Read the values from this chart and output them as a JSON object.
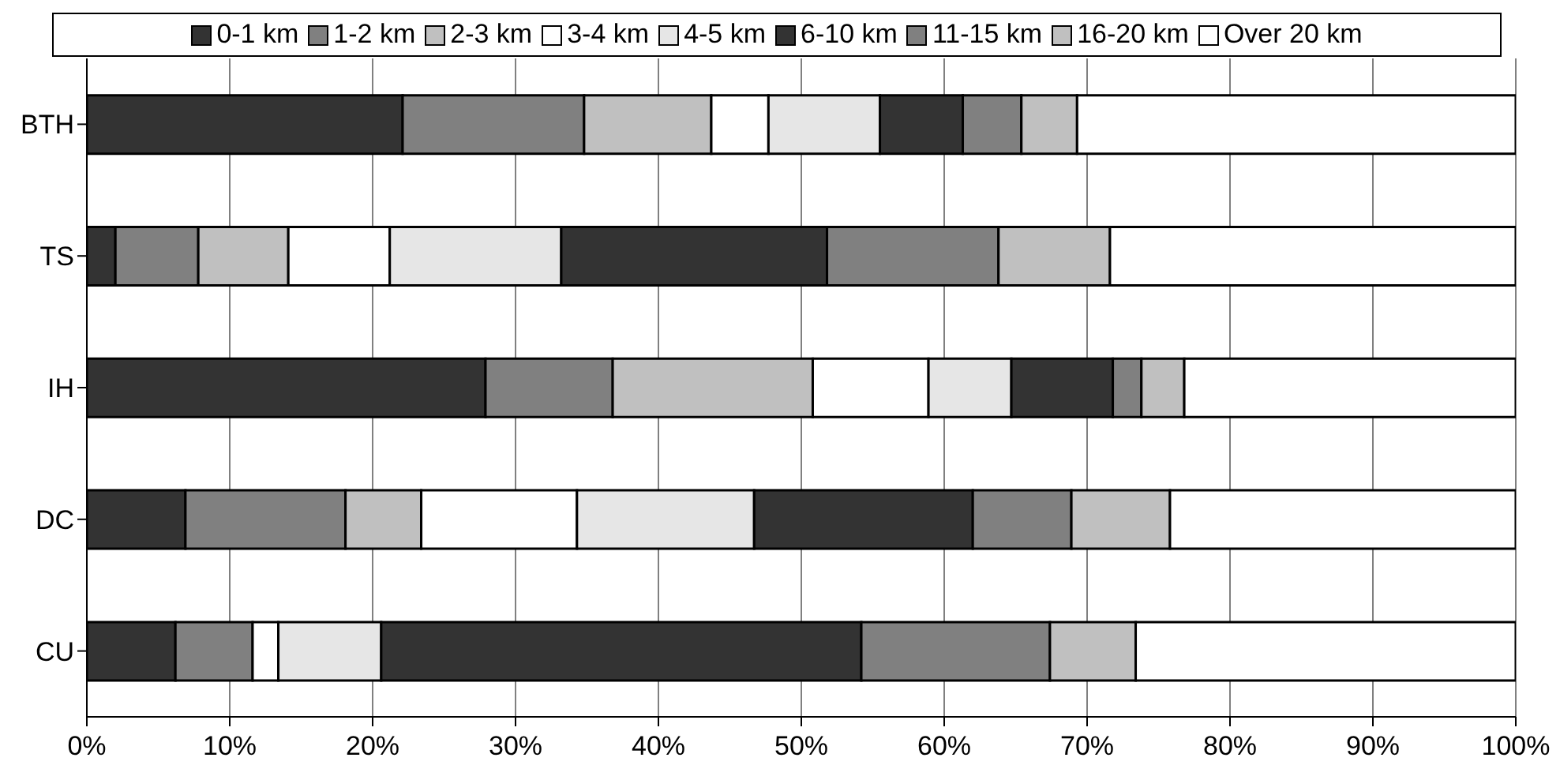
{
  "chart_data": {
    "type": "bar",
    "orientation": "horizontal",
    "stacked": true,
    "categories": [
      "BTH",
      "TS",
      "IH",
      "DC",
      "CU"
    ],
    "series": [
      {
        "name": "0-1 km",
        "color": "#333333",
        "values": [
          22.1,
          2.0,
          27.9,
          6.9,
          6.2
        ]
      },
      {
        "name": "1-2 km",
        "color": "#808080",
        "values": [
          12.7,
          5.8,
          8.9,
          11.2,
          5.4
        ]
      },
      {
        "name": "2-3 km",
        "color": "#c0c0c0",
        "values": [
          8.9,
          6.3,
          14.0,
          5.3,
          0
        ]
      },
      {
        "name": "3-4 km",
        "color": "#ffffff",
        "values": [
          4.0,
          7.1,
          8.1,
          10.9,
          1.8
        ]
      },
      {
        "name": "4-5 km",
        "color": "#e6e6e6",
        "values": [
          7.8,
          12.0,
          5.8,
          12.4,
          7.2
        ]
      },
      {
        "name": "6-10 km",
        "color": "#333333",
        "values": [
          5.8,
          18.6,
          7.1,
          15.3,
          33.6
        ]
      },
      {
        "name": "11-15 km",
        "color": "#808080",
        "values": [
          4.1,
          12.0,
          2.0,
          6.9,
          13.2
        ]
      },
      {
        "name": "16-20 km",
        "color": "#c0c0c0",
        "values": [
          3.9,
          7.8,
          3.0,
          6.9,
          6.0
        ]
      },
      {
        "name": "Over 20 km",
        "color": "#ffffff",
        "values": [
          30.7,
          28.4,
          23.2,
          24.2,
          26.6
        ]
      }
    ],
    "xlim": [
      0,
      100
    ],
    "xticks": [
      {
        "value": 0,
        "label": "0%"
      },
      {
        "value": 10,
        "label": "10%"
      },
      {
        "value": 20,
        "label": "20%"
      },
      {
        "value": 30,
        "label": "30%"
      },
      {
        "value": 40,
        "label": "40%"
      },
      {
        "value": 50,
        "label": "50%"
      },
      {
        "value": 60,
        "label": "60%"
      },
      {
        "value": 70,
        "label": "70%"
      },
      {
        "value": 80,
        "label": "80%"
      },
      {
        "value": 90,
        "label": "90%"
      },
      {
        "value": 100,
        "label": "100%"
      }
    ],
    "grid": "x",
    "legend": "top"
  }
}
